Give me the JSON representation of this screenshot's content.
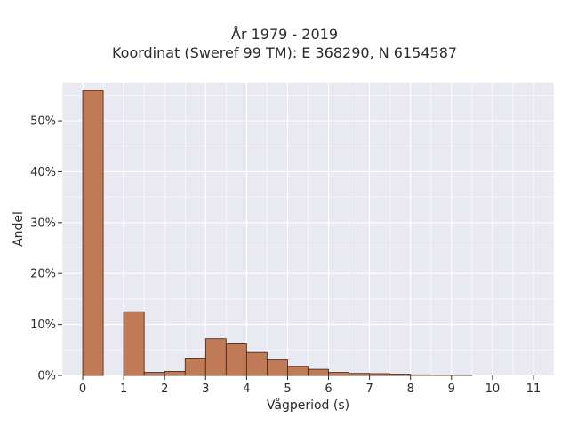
{
  "chart_data": {
    "type": "bar",
    "title_line1": "År 1979 - 2019",
    "title_line2": "Koordinat (Sweref 99 TM): E 368290, N 6154587",
    "xlabel": "Vågperiod (s)",
    "ylabel": "Andel",
    "xlim": [
      -0.5,
      11.5
    ],
    "ylim": [
      0,
      57.5
    ],
    "x_ticks": [
      0,
      1,
      2,
      3,
      4,
      5,
      6,
      7,
      8,
      9,
      10,
      11
    ],
    "x_tick_labels": [
      "0",
      "1",
      "2",
      "3",
      "4",
      "5",
      "6",
      "7",
      "8",
      "9",
      "10",
      "11"
    ],
    "y_ticks": [
      0,
      10,
      20,
      30,
      40,
      50
    ],
    "y_tick_labels": [
      "0%",
      "10%",
      "20%",
      "30%",
      "40%",
      "50%"
    ],
    "bin_width": 0.5,
    "bins": [
      {
        "start": 0.0,
        "value": 56.0
      },
      {
        "start": 0.5,
        "value": 0.0
      },
      {
        "start": 1.0,
        "value": 12.5
      },
      {
        "start": 1.5,
        "value": 0.6
      },
      {
        "start": 2.0,
        "value": 0.8
      },
      {
        "start": 2.5,
        "value": 3.4
      },
      {
        "start": 3.0,
        "value": 7.2
      },
      {
        "start": 3.5,
        "value": 6.2
      },
      {
        "start": 4.0,
        "value": 4.5
      },
      {
        "start": 4.5,
        "value": 3.1
      },
      {
        "start": 5.0,
        "value": 1.8
      },
      {
        "start": 5.5,
        "value": 1.2
      },
      {
        "start": 6.0,
        "value": 0.6
      },
      {
        "start": 6.5,
        "value": 0.4
      },
      {
        "start": 7.0,
        "value": 0.35
      },
      {
        "start": 7.5,
        "value": 0.25
      },
      {
        "start": 8.0,
        "value": 0.12
      },
      {
        "start": 8.5,
        "value": 0.08
      },
      {
        "start": 9.0,
        "value": 0.05
      },
      {
        "start": 9.5,
        "value": 0.0
      },
      {
        "start": 10.0,
        "value": 0.0
      },
      {
        "start": 10.5,
        "value": 0.0
      }
    ],
    "grid": true,
    "colors": {
      "bar_fill": "#c07a55",
      "bar_edge": "#3a2418",
      "plot_bg": "#e9e9f1",
      "grid": "#ffffff"
    }
  }
}
